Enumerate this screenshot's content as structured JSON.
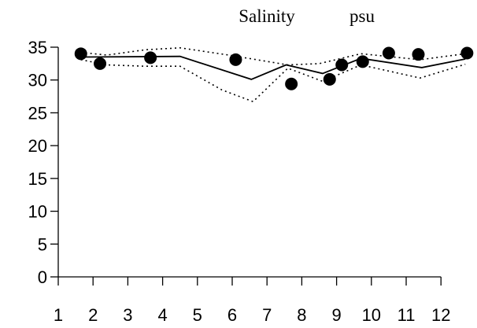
{
  "chart_data": {
    "type": "line",
    "title": "Salinity",
    "unit": "psu",
    "xlabel": "",
    "ylabel": "",
    "xlim": [
      1,
      12.9
    ],
    "ylim": [
      0,
      35
    ],
    "x_ticks": [
      1,
      2,
      3,
      4,
      5,
      6,
      7,
      8,
      9,
      10,
      11,
      12
    ],
    "y_ticks": [
      0,
      5,
      10,
      15,
      20,
      25,
      30,
      35
    ],
    "grid": false,
    "legend": "none",
    "series": [
      {
        "style": "solid",
        "x": [
          1.65,
          4.5,
          6.55,
          7.55,
          8.6,
          9.7,
          11.45,
          12.7
        ],
        "y": [
          33.5,
          33.6,
          30.1,
          32.3,
          31.0,
          33.3,
          31.9,
          33.2
        ]
      },
      {
        "style": "dotted-upper",
        "x": [
          1.65,
          2.4,
          3.5,
          4.5,
          5.9,
          7.6,
          8.5,
          9.7,
          11.4,
          12.7
        ],
        "y": [
          34.2,
          33.8,
          34.6,
          34.9,
          33.8,
          32.3,
          32.5,
          34.0,
          33.1,
          34.0
        ]
      },
      {
        "style": "dotted-lower",
        "x": [
          1.65,
          2.4,
          3.5,
          4.5,
          5.7,
          6.6,
          7.6,
          8.6,
          9.7,
          11.4,
          12.7
        ],
        "y": [
          33.1,
          32.3,
          32.1,
          32.1,
          28.5,
          26.7,
          31.8,
          29.8,
          32.3,
          30.3,
          32.4
        ]
      },
      {
        "style": "points",
        "x": [
          1.65,
          2.2,
          3.65,
          6.1,
          7.7,
          8.8,
          9.15,
          9.75,
          10.5,
          11.35,
          12.75
        ],
        "y": [
          34.0,
          32.5,
          33.4,
          33.1,
          29.4,
          30.1,
          32.3,
          32.8,
          34.1,
          33.9,
          34.1
        ]
      }
    ],
    "colors": {
      "line": "#000000",
      "points": "#000000"
    }
  }
}
